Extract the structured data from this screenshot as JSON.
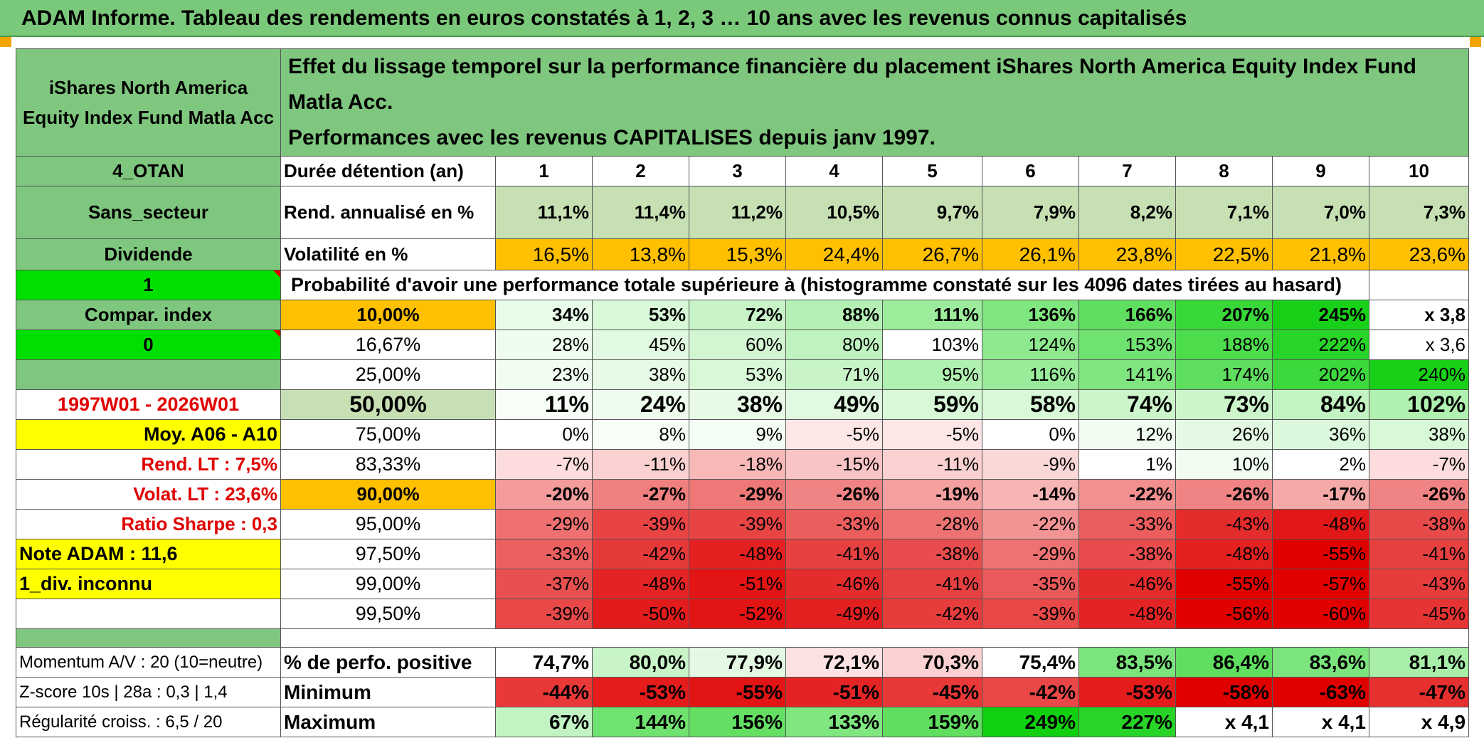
{
  "title": "ADAM Informe. Tableau des rendements en euros constatés à 1, 2, 3 … 10 ans avec les revenus connus capitalisés",
  "fund_name": "iShares North America Equity Index Fund Matla Acc",
  "description_line1": "Effet du lissage temporel sur la performance financière du placement iShares North America Equity Index Fund Matla Acc.",
  "description_line2": "Performances avec les revenus CAPITALISES depuis janv 1997.",
  "left": {
    "code": "4_OTAN",
    "sector": "Sans_secteur",
    "dividend": "Dividende",
    "flag1": "1",
    "compar": "Compar. index",
    "flag0": "0",
    "period": "1997W01 - 2026W01",
    "moy": "Moy. A06 - A10",
    "rend_lt": "Rend. LT :   7,5%",
    "volat_lt": "Volat. LT :   23,6%",
    "sharpe": "Ratio Sharpe :   0,3",
    "note": "Note ADAM : 11,6",
    "div_unknown": "1_div. inconnu",
    "momentum": "Momentum A/V : 20 (10=neutre)",
    "zscore": "Z-score 10s | 28a : 0,3 | 1,4",
    "regularite": "Régularité croiss. : 6,5 / 20"
  },
  "labels": {
    "duree": "Durée détention (an)",
    "rend": "Rend. annualisé en %",
    "volat": "Volatilité en %",
    "proba": "Probabilité d'avoir une performance totale supérieure à (histogramme constaté sur les 4096 dates tirées au hasard)",
    "perf_pos": "% de perfo. positive",
    "minimum": "Minimum",
    "maximum": "Maximum"
  },
  "years": [
    "1",
    "2",
    "3",
    "4",
    "5",
    "6",
    "7",
    "8",
    "9",
    "10"
  ],
  "rend": [
    "11,1%",
    "11,4%",
    "11,2%",
    "10,5%",
    "9,7%",
    "7,9%",
    "8,2%",
    "7,1%",
    "7,0%",
    "7,3%"
  ],
  "volat": [
    "16,5%",
    "13,8%",
    "15,3%",
    "24,4%",
    "26,7%",
    "26,1%",
    "23,8%",
    "22,5%",
    "21,8%",
    "23,6%"
  ],
  "prob_rows": [
    {
      "p": "10,00%",
      "v": [
        "34%",
        "53%",
        "72%",
        "88%",
        "111%",
        "136%",
        "166%",
        "207%",
        "245%",
        "x 3,8"
      ]
    },
    {
      "p": "16,67%",
      "v": [
        "28%",
        "45%",
        "60%",
        "80%",
        "103%",
        "124%",
        "153%",
        "188%",
        "222%",
        "x 3,6"
      ]
    },
    {
      "p": "25,00%",
      "v": [
        "23%",
        "38%",
        "53%",
        "71%",
        "95%",
        "116%",
        "141%",
        "174%",
        "202%",
        "240%"
      ]
    },
    {
      "p": "50,00%",
      "v": [
        "11%",
        "24%",
        "38%",
        "49%",
        "59%",
        "58%",
        "74%",
        "73%",
        "84%",
        "102%"
      ]
    },
    {
      "p": "75,00%",
      "v": [
        "0%",
        "8%",
        "9%",
        "-5%",
        "-5%",
        "0%",
        "12%",
        "26%",
        "36%",
        "38%"
      ]
    },
    {
      "p": "83,33%",
      "v": [
        "-7%",
        "-11%",
        "-18%",
        "-15%",
        "-11%",
        "-9%",
        "1%",
        "10%",
        "2%",
        "-7%"
      ]
    },
    {
      "p": "90,00%",
      "v": [
        "-20%",
        "-27%",
        "-29%",
        "-26%",
        "-19%",
        "-14%",
        "-22%",
        "-26%",
        "-17%",
        "-26%"
      ]
    },
    {
      "p": "95,00%",
      "v": [
        "-29%",
        "-39%",
        "-39%",
        "-33%",
        "-28%",
        "-22%",
        "-33%",
        "-43%",
        "-48%",
        "-38%"
      ]
    },
    {
      "p": "97,50%",
      "v": [
        "-33%",
        "-42%",
        "-48%",
        "-41%",
        "-38%",
        "-29%",
        "-38%",
        "-48%",
        "-55%",
        "-41%"
      ]
    },
    {
      "p": "99,00%",
      "v": [
        "-37%",
        "-48%",
        "-51%",
        "-46%",
        "-41%",
        "-35%",
        "-46%",
        "-55%",
        "-57%",
        "-43%"
      ]
    },
    {
      "p": "99,50%",
      "v": [
        "-39%",
        "-50%",
        "-52%",
        "-49%",
        "-42%",
        "-39%",
        "-48%",
        "-56%",
        "-60%",
        "-45%"
      ]
    }
  ],
  "perf_pos": [
    "74,7%",
    "80,0%",
    "77,9%",
    "72,1%",
    "70,3%",
    "75,4%",
    "83,5%",
    "86,4%",
    "83,6%",
    "81,1%"
  ],
  "minimum": [
    "-44%",
    "-53%",
    "-55%",
    "-51%",
    "-45%",
    "-42%",
    "-53%",
    "-58%",
    "-63%",
    "-47%"
  ],
  "maximum": [
    "67%",
    "144%",
    "156%",
    "133%",
    "159%",
    "249%",
    "227%",
    "x 4,1",
    "x 4,1",
    "x 4,9"
  ],
  "colors": {
    "green_header": "#7fc77f",
    "light_green": "#c6e0b4",
    "bright_green": "#00e000",
    "orange": "#ffc000",
    "yellow": "#ffff00",
    "red_text": "#e00000"
  }
}
